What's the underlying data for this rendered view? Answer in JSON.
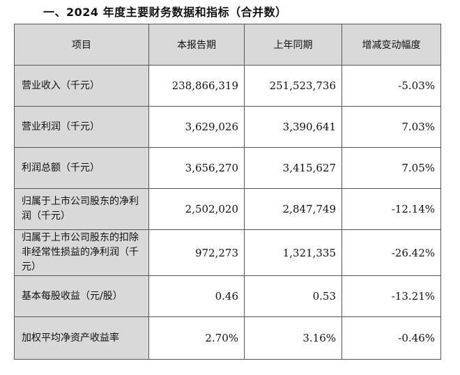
{
  "title": "一、2024 年度主要财务数据和指标（合并数）",
  "table": {
    "headers": [
      "项目",
      "本报告期",
      "上年同期",
      "增减变动幅度"
    ],
    "rows": [
      {
        "label": "营业收入（千元）",
        "current": "238,866,319",
        "prior": "251,523,736",
        "change": "-5.03%"
      },
      {
        "label": "营业利润（千元）",
        "current": "3,629,026",
        "prior": "3,390,641",
        "change": "7.03%"
      },
      {
        "label": "利润总额（千元）",
        "current": "3,656,270",
        "prior": "3,415,627",
        "change": "7.05%"
      },
      {
        "label": "归属于上市公司股东的净利润（千元）",
        "current": "2,502,020",
        "prior": "2,847,749",
        "change": "-12.14%"
      },
      {
        "label": "归属于上市公司股东的扣除非经常性损益的净利润（千元）",
        "current": "972,273",
        "prior": "1,321,335",
        "change": "-26.42%"
      },
      {
        "label": "基本每股收益（元/股）",
        "current": "0.46",
        "prior": "0.53",
        "change": "-13.21%"
      },
      {
        "label": "加权平均净资产收益率",
        "current": "2.70%",
        "prior": "3.16%",
        "change": "-0.46%"
      }
    ]
  }
}
